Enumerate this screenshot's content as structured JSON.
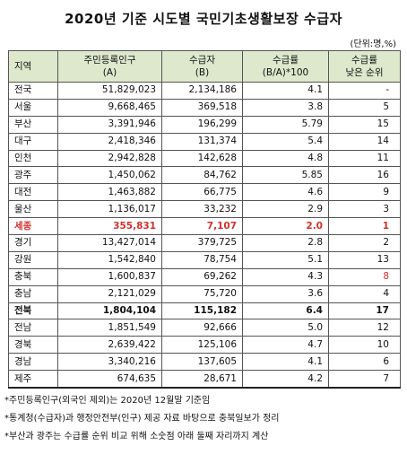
{
  "title": "2020년 기준 시도별 국민기초생활보장 수급자",
  "unit": "(단위:명,%)",
  "headers": {
    "region": "지역",
    "pop_line1": "주민등록인구",
    "pop_line2": "(A)",
    "rec_line1": "수급자",
    "rec_line2": "(B)",
    "rate_line1": "수급률",
    "rate_line2": "(B/A)*100",
    "rank_line1": "수급률",
    "rank_line2": "낮은 순위"
  },
  "rows": [
    {
      "region": "전국",
      "population": "51,829,023",
      "recipients": "2,134,186",
      "rate": "4.1",
      "rank": "-"
    },
    {
      "region": "서울",
      "population": "9,668,465",
      "recipients": "369,518",
      "rate": "3.8",
      "rank": "5"
    },
    {
      "region": "부산",
      "population": "3,391,946",
      "recipients": "196,299",
      "rate": "5.79",
      "rank": "15"
    },
    {
      "region": "대구",
      "population": "2,418,346",
      "recipients": "131,374",
      "rate": "5.4",
      "rank": "14"
    },
    {
      "region": "인천",
      "population": "2,942,828",
      "recipients": "142,628",
      "rate": "4.8",
      "rank": "11"
    },
    {
      "region": "광주",
      "population": "1,450,062",
      "recipients": "84,762",
      "rate": "5.85",
      "rank": "16"
    },
    {
      "region": "대전",
      "population": "1,463,882",
      "recipients": "66,775",
      "rate": "4.6",
      "rank": "9"
    },
    {
      "region": "울산",
      "population": "1,136,017",
      "recipients": "33,232",
      "rate": "2.9",
      "rank": "3"
    },
    {
      "region": "세종",
      "population": "355,831",
      "recipients": "7,107",
      "rate": "2.0",
      "rank": "1"
    },
    {
      "region": "경기",
      "population": "13,427,014",
      "recipients": "379,725",
      "rate": "2.8",
      "rank": "2"
    },
    {
      "region": "강원",
      "population": "1,542,840",
      "recipients": "78,754",
      "rate": "5.1",
      "rank": "13"
    },
    {
      "region": "충북",
      "population": "1,600,837",
      "recipients": "69,262",
      "rate": "4.3",
      "rank": "8"
    },
    {
      "region": "충남",
      "population": "2,121,029",
      "recipients": "75,720",
      "rate": "3.6",
      "rank": "4"
    },
    {
      "region": "전북",
      "population": "1,804,104",
      "recipients": "115,182",
      "rate": "6.4",
      "rank": "17"
    },
    {
      "region": "전남",
      "population": "1,851,549",
      "recipients": "92,666",
      "rate": "5.0",
      "rank": "12"
    },
    {
      "region": "경북",
      "population": "2,639,422",
      "recipients": "125,106",
      "rate": "4.7",
      "rank": "10"
    },
    {
      "region": "경남",
      "population": "3,340,216",
      "recipients": "137,605",
      "rate": "4.1",
      "rank": "6"
    },
    {
      "region": "제주",
      "population": "674,635",
      "recipients": "28,671",
      "rate": "4.2",
      "rank": "7"
    }
  ],
  "notes": [
    "*주민등록인구(외국인 제외)는 2020년 12월말 기준임",
    "*통계청(수급자)과 행정안전부(인구) 제공 자료 바탕으로 충북일보가 정리",
    "*부산과 광주는 수급률 순위 비교 위해 소숫점 아래 둘째 자리까지 계산"
  ],
  "colors": {
    "header_bg": "#dde8cc",
    "highlight_red": "#d0312d"
  }
}
